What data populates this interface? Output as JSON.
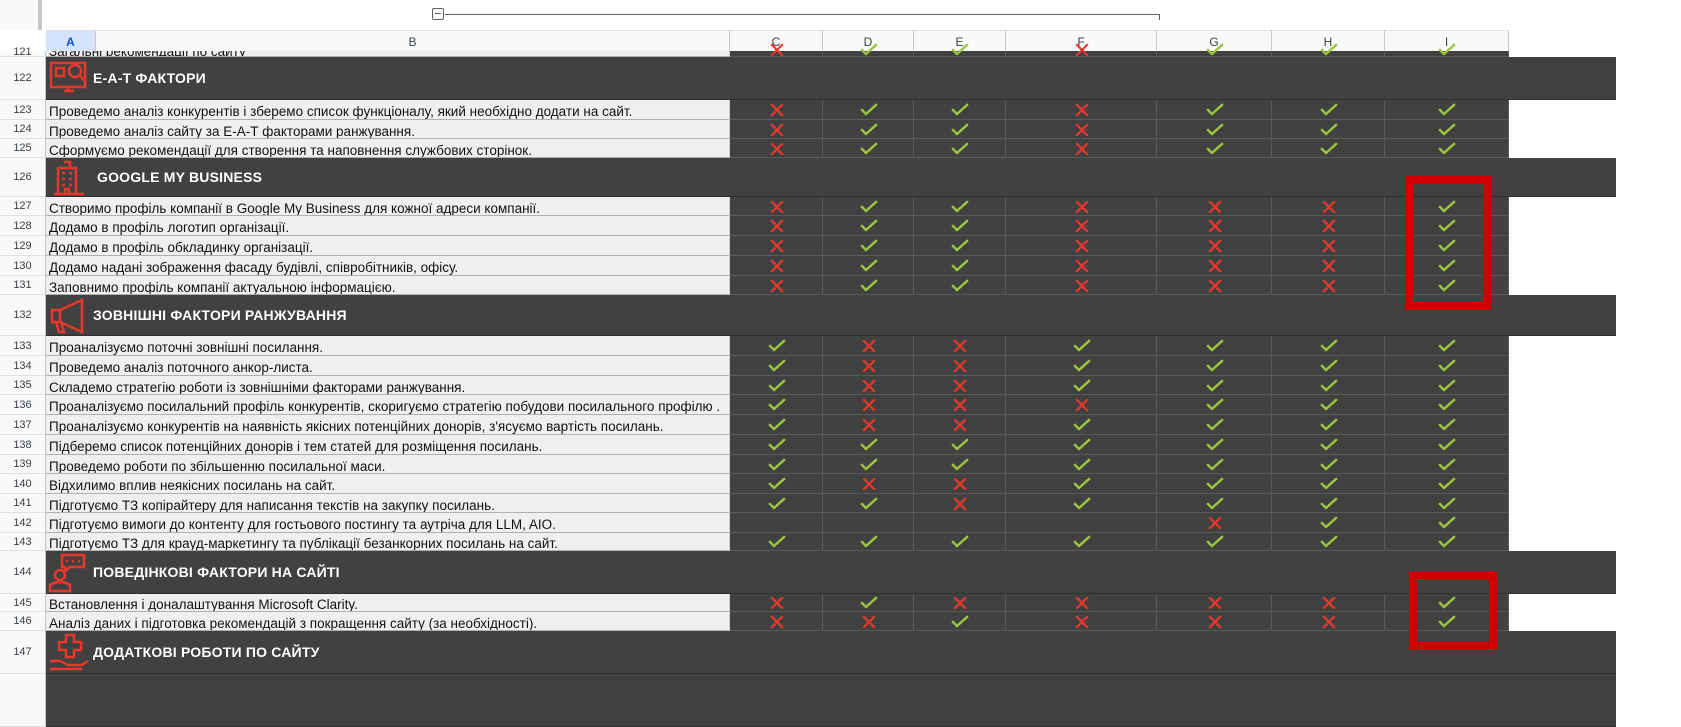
{
  "columns": [
    "A",
    "B",
    "C",
    "D",
    "E",
    "F",
    "G",
    "H",
    "I"
  ],
  "selected_column": "A",
  "partial_row": {
    "number": "121",
    "text": "Загальні рекомендації по сайту",
    "marks": [
      "x",
      "v",
      "v",
      "x",
      "v",
      "v",
      "v"
    ]
  },
  "rows": [
    {
      "type": "section",
      "number": "122",
      "title": "Е-А-Т ФАКТОРИ",
      "icon": "monitor-search-icon"
    },
    {
      "type": "item",
      "number": "123",
      "text": "Проведемо аналіз конкурентів і зберемо список функціоналу, який необхідно додати на сайт.",
      "marks": [
        "x",
        "v",
        "v",
        "x",
        "v",
        "v",
        "v"
      ]
    },
    {
      "type": "item",
      "number": "124",
      "text": "Проведемо аналіз сайту за Е-А-Т факторами ранжування.",
      "marks": [
        "x",
        "v",
        "v",
        "x",
        "v",
        "v",
        "v"
      ]
    },
    {
      "type": "item",
      "number": "125",
      "text": "Сформуємо рекомендації для створення та наповнення службових сторінок.",
      "marks": [
        "x",
        "v",
        "v",
        "x",
        "v",
        "v",
        "v"
      ]
    },
    {
      "type": "section",
      "number": "126",
      "title": "GOOGLE MY BUSINESS",
      "icon": "building-icon"
    },
    {
      "type": "item",
      "number": "127",
      "text": "Створимо профіль компанії в Google My Business для кожної адреси компанії.",
      "marks": [
        "x",
        "v",
        "v",
        "x",
        "x",
        "x",
        "v"
      ]
    },
    {
      "type": "item",
      "number": "128",
      "text": "Додамо в профіль логотип організації.",
      "marks": [
        "x",
        "v",
        "v",
        "x",
        "x",
        "x",
        "v"
      ]
    },
    {
      "type": "item",
      "number": "129",
      "text": "Додамо в профіль обкладинку організації.",
      "marks": [
        "x",
        "v",
        "v",
        "x",
        "x",
        "x",
        "v"
      ]
    },
    {
      "type": "item",
      "number": "130",
      "text": "Додамо надані зображення фасаду будівлі, співробітників, офісу.",
      "marks": [
        "x",
        "v",
        "v",
        "x",
        "x",
        "x",
        "v"
      ]
    },
    {
      "type": "item",
      "number": "131",
      "text": "Заповнимо профіль компанії актуальною інформацією.",
      "marks": [
        "x",
        "v",
        "v",
        "x",
        "x",
        "x",
        "v"
      ]
    },
    {
      "type": "section",
      "number": "132",
      "title": "ЗОВНІШНІ ФАКТОРИ РАНЖУВАННЯ",
      "icon": "megaphone-icon"
    },
    {
      "type": "item",
      "number": "133",
      "text": "Проаналізуємо поточні зовнішні посилання.",
      "marks": [
        "v",
        "x",
        "x",
        "v",
        "v",
        "v",
        "v"
      ]
    },
    {
      "type": "item",
      "number": "134",
      "text": "Проведемо аналіз поточного анкор-листа.",
      "marks": [
        "v",
        "x",
        "x",
        "v",
        "v",
        "v",
        "v"
      ]
    },
    {
      "type": "item",
      "number": "135",
      "text": "Складемо стратегію роботи із зовнішніми факторами ранжування.",
      "marks": [
        "v",
        "x",
        "x",
        "v",
        "v",
        "v",
        "v"
      ]
    },
    {
      "type": "item",
      "number": "136",
      "text": "Проаналізуємо посилальний профіль конкурентів, скоригуємо стратегію побудови посилального профілю .",
      "marks": [
        "v",
        "x",
        "x",
        "x",
        "v",
        "v",
        "v"
      ]
    },
    {
      "type": "item",
      "number": "137",
      "text": "Проаналізуємо конкурентів на наявність якісних потенційних донорів, з'ясуємо вартість  посилань.",
      "marks": [
        "v",
        "x",
        "x",
        "v",
        "v",
        "v",
        "v"
      ]
    },
    {
      "type": "item",
      "number": "138",
      "text": "Підберемо список потенційних донорів і тем статей для розміщення посилань.",
      "marks": [
        "v",
        "v",
        "v",
        "v",
        "v",
        "v",
        "v"
      ]
    },
    {
      "type": "item",
      "number": "139",
      "text": "Проведемо роботи по збільшенню посилальної маси.",
      "marks": [
        "v",
        "v",
        "v",
        "v",
        "v",
        "v",
        "v"
      ]
    },
    {
      "type": "item",
      "number": "140",
      "text": "Відхилимо вплив неякісних посилань на сайт.",
      "marks": [
        "v",
        "x",
        "x",
        "v",
        "v",
        "v",
        "v"
      ]
    },
    {
      "type": "item",
      "number": "141",
      "text": "Підготуємо ТЗ копірайтеру для написання текстів на закупку посилань.",
      "marks": [
        "v",
        "v",
        "x",
        "v",
        "v",
        "v",
        "v"
      ]
    },
    {
      "type": "item",
      "number": "142",
      "text": "Підготуємо вимоги до контенту для гостьового постингу та аутріча для LLM, AIO.",
      "marks": [
        "",
        "",
        "",
        "",
        "x",
        "v",
        "v"
      ]
    },
    {
      "type": "item",
      "number": "143",
      "text": "Підготуємо ТЗ для крауд-маркетингу та публікації безанкорних посилань на сайт.",
      "marks": [
        "v",
        "v",
        "v",
        "v",
        "v",
        "v",
        "v"
      ]
    },
    {
      "type": "section",
      "number": "144",
      "title": "ПОВЕДІНКОВІ ФАКТОРИ НА САЙТІ",
      "icon": "chat-user-icon"
    },
    {
      "type": "item",
      "number": "145",
      "text": "Встановлення і доналаштування Microsoft Clarity.",
      "marks": [
        "x",
        "v",
        "x",
        "x",
        "x",
        "x",
        "v"
      ]
    },
    {
      "type": "item",
      "number": "146",
      "text": "Аналіз даних і підготовка рекомендацій з покращення сайту (за необхідності).",
      "marks": [
        "x",
        "x",
        "v",
        "x",
        "x",
        "x",
        "v"
      ]
    },
    {
      "type": "section",
      "number": "147",
      "title": "ДОДАТКОВІ РОБОТИ ПО САЙТУ",
      "icon": "medical-hand-icon"
    }
  ],
  "colors": {
    "check": "#9fc53f",
    "cross": "#e8382b",
    "section_bg": "#414141",
    "icon": "#e8382b",
    "highlight": "#d10000"
  }
}
